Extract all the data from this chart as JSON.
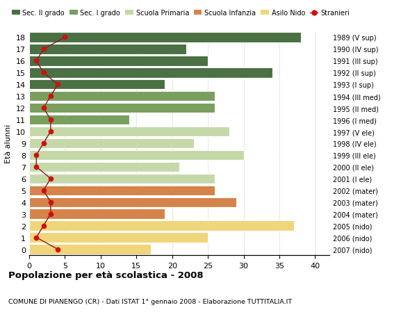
{
  "ages": [
    18,
    17,
    16,
    15,
    14,
    13,
    12,
    11,
    10,
    9,
    8,
    7,
    6,
    5,
    4,
    3,
    2,
    1,
    0
  ],
  "bar_values": [
    38,
    22,
    25,
    34,
    19,
    26,
    26,
    14,
    28,
    23,
    30,
    21,
    26,
    26,
    29,
    19,
    37,
    25,
    17
  ],
  "stranieri_values": [
    5,
    2,
    1,
    2,
    4,
    3,
    2,
    3,
    3,
    2,
    1,
    1,
    3,
    2,
    3,
    3,
    2,
    1,
    4
  ],
  "right_labels": [
    "1989 (V sup)",
    "1990 (IV sup)",
    "1991 (III sup)",
    "1992 (II sup)",
    "1993 (I sup)",
    "1994 (III med)",
    "1995 (II med)",
    "1996 (I med)",
    "1997 (V ele)",
    "1998 (IV ele)",
    "1999 (III ele)",
    "2000 (II ele)",
    "2001 (I ele)",
    "2002 (mater)",
    "2003 (mater)",
    "2004 (mater)",
    "2005 (nido)",
    "2006 (nido)",
    "2007 (nido)"
  ],
  "colors": {
    "sec2": "#4a7043",
    "sec1": "#7a9e5e",
    "primaria": "#c5d9a8",
    "infanzia": "#d4834a",
    "nido": "#f0d57a",
    "stranieri_line": "#8b1a1a",
    "stranieri_dot": "#cc1111"
  },
  "legend_labels": [
    "Sec. II grado",
    "Sec. I grado",
    "Scuola Primaria",
    "Scuola Infanzia",
    "Asilo Nido",
    "Stranieri"
  ],
  "title": "Popolazione per età scolastica - 2008",
  "subtitle": "COMUNE DI PIANENGO (CR) - Dati ISTAT 1° gennaio 2008 - Elaborazione TUTTITALIA.IT",
  "ylabel": "Età alunni",
  "xlim": [
    0,
    42
  ],
  "background_color": "#ffffff"
}
